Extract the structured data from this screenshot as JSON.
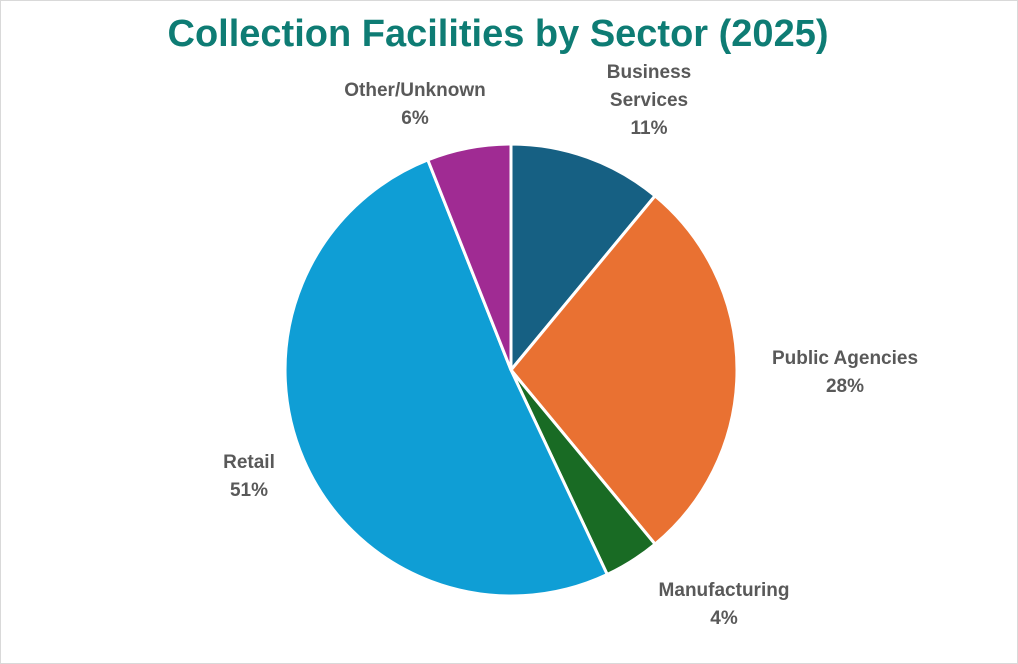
{
  "chart_data": {
    "type": "pie",
    "title": "Collection Facilities by Sector (2025)",
    "slices": [
      {
        "label_lines": [
          "Business",
          "Services"
        ],
        "value_label": "11%",
        "value": 11,
        "color": "#166083"
      },
      {
        "label_lines": [
          "Public Agencies"
        ],
        "value_label": "28%",
        "value": 28,
        "color": "#E97132"
      },
      {
        "label_lines": [
          "Manufacturing"
        ],
        "value_label": "4%",
        "value": 4,
        "color": "#196B24"
      },
      {
        "label_lines": [
          "Retail"
        ],
        "value_label": "51%",
        "value": 51,
        "color": "#0F9ED5"
      },
      {
        "label_lines": [
          "Other/Unknown"
        ],
        "value_label": "6%",
        "value": 6,
        "color": "#A02B93"
      }
    ],
    "start_angle": "12 o'clock",
    "direction": "clockwise",
    "legend": "none",
    "data_labels": "outside"
  },
  "colors": {
    "title": "#0E7C74",
    "label_text": "#595959",
    "slice_border": "#ffffff",
    "frame_border": "#d9d9d9"
  }
}
